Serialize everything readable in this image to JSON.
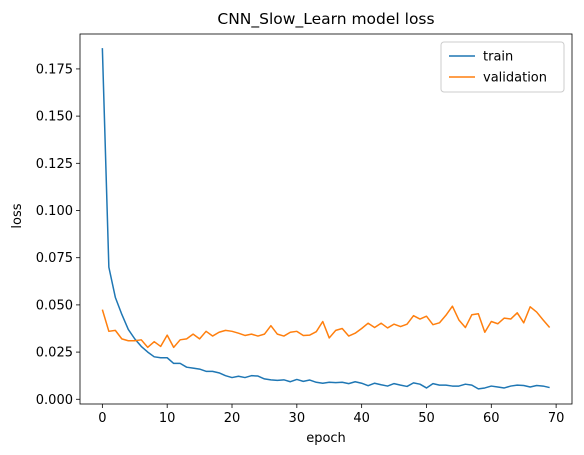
{
  "chart_data": {
    "type": "line",
    "title": "CNN_Slow_Learn model loss",
    "xlabel": "epoch",
    "ylabel": "loss",
    "xlim": [
      -3.45,
      72.45
    ],
    "ylim": [
      -0.0025,
      0.1935
    ],
    "xticks": [
      0,
      10,
      20,
      30,
      40,
      50,
      60,
      70
    ],
    "yticks": [
      0.0,
      0.025,
      0.05,
      0.075,
      0.1,
      0.125,
      0.15,
      0.175
    ],
    "ytick_labels": [
      "0.000",
      "0.025",
      "0.050",
      "0.075",
      "0.100",
      "0.125",
      "0.150",
      "0.175"
    ],
    "grid": false,
    "legend_position": "upper right",
    "x": [
      0,
      1,
      2,
      3,
      4,
      5,
      6,
      7,
      8,
      9,
      10,
      11,
      12,
      13,
      14,
      15,
      16,
      17,
      18,
      19,
      20,
      21,
      22,
      23,
      24,
      25,
      26,
      27,
      28,
      29,
      30,
      31,
      32,
      33,
      34,
      35,
      36,
      37,
      38,
      39,
      40,
      41,
      42,
      43,
      44,
      45,
      46,
      47,
      48,
      49,
      50,
      51,
      52,
      53,
      54,
      55,
      56,
      57,
      58,
      59,
      60,
      61,
      62,
      63,
      64,
      65,
      66,
      67,
      68,
      69
    ],
    "series": [
      {
        "name": "train",
        "color": "#1f77b4",
        "values": [
          0.186,
          0.07,
          0.054,
          0.045,
          0.037,
          0.032,
          0.028,
          0.025,
          0.0225,
          0.022,
          0.022,
          0.019,
          0.019,
          0.017,
          0.0165,
          0.016,
          0.0148,
          0.0148,
          0.014,
          0.0125,
          0.0115,
          0.0122,
          0.0115,
          0.0125,
          0.0123,
          0.0108,
          0.0103,
          0.01,
          0.0103,
          0.0093,
          0.0105,
          0.0095,
          0.0102,
          0.009,
          0.0085,
          0.009,
          0.0088,
          0.009,
          0.0083,
          0.0093,
          0.0085,
          0.0072,
          0.0085,
          0.0077,
          0.007,
          0.0083,
          0.0075,
          0.0068,
          0.0087,
          0.008,
          0.006,
          0.0083,
          0.0075,
          0.0075,
          0.007,
          0.007,
          0.008,
          0.0075,
          0.0055,
          0.006,
          0.007,
          0.0065,
          0.006,
          0.007,
          0.0075,
          0.0073,
          0.0065,
          0.0073,
          0.007,
          0.0062
        ]
      },
      {
        "name": "validation",
        "color": "#ff7f0e",
        "values": [
          0.0475,
          0.036,
          0.0365,
          0.032,
          0.031,
          0.031,
          0.0315,
          0.0275,
          0.0305,
          0.028,
          0.034,
          0.0275,
          0.0315,
          0.032,
          0.0345,
          0.032,
          0.036,
          0.0335,
          0.0355,
          0.0365,
          0.036,
          0.035,
          0.0338,
          0.0345,
          0.0335,
          0.0345,
          0.039,
          0.0345,
          0.0335,
          0.0355,
          0.036,
          0.0338,
          0.034,
          0.0358,
          0.0412,
          0.0325,
          0.0365,
          0.0375,
          0.0335,
          0.035,
          0.0375,
          0.0403,
          0.038,
          0.0403,
          0.0378,
          0.0398,
          0.0385,
          0.0398,
          0.0443,
          0.0425,
          0.044,
          0.0395,
          0.0405,
          0.0445,
          0.0493,
          0.042,
          0.038,
          0.0448,
          0.0453,
          0.0355,
          0.0412,
          0.04,
          0.043,
          0.0425,
          0.0458,
          0.0405,
          0.049,
          0.0462,
          0.042,
          0.038
        ]
      }
    ]
  }
}
